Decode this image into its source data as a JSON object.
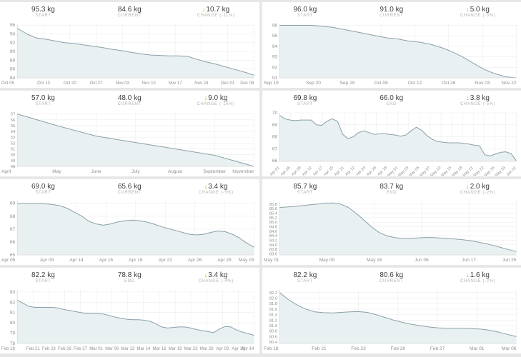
{
  "page": {
    "background": "#e7e7e7",
    "card_background": "#ffffff",
    "unit": "kg"
  },
  "colors": {
    "line": "#8aa0a8",
    "fill": "#e9f0f2",
    "grid": "#ececec",
    "baseline": "#d9d9d9",
    "axis_text": "#8f8f8f",
    "value_text": "#3f3f3f",
    "label_text": "#b3b3b3",
    "arrow": "#c7a21b"
  },
  "icons": {
    "down_arrow": "↓"
  },
  "chart_data": [
    {
      "type": "area",
      "stats": [
        {
          "value": "95.3 kg",
          "label": "START",
          "arrow": false
        },
        {
          "value": "84.6 kg",
          "label": "CURRENT",
          "arrow": false
        },
        {
          "value": "10.7 kg",
          "label": "CHANGE (-11%)",
          "arrow": true
        }
      ],
      "x_ticks": [
        "Oct 05",
        "Oct 13",
        "Oct 20",
        "Oct 27",
        "Nov 03",
        "Nov 10",
        "Nov 17",
        "Nov 24",
        "Dec 01",
        "Dec 08"
      ],
      "y_ticks": [
        "84",
        "86",
        "88",
        "90",
        "92",
        "94",
        "96"
      ],
      "ylim": [
        84,
        96.2
      ],
      "x_label_rotate": false,
      "values": [
        95.3,
        94.0,
        93.1,
        92.8,
        92.4,
        92.0,
        91.8,
        91.5,
        91.2,
        90.9,
        90.5,
        90.2,
        89.8,
        89.5,
        89.2,
        89.1,
        89.0,
        89.0,
        88.9,
        88.2,
        87.6,
        87.1,
        86.5,
        85.9,
        85.3,
        84.6
      ]
    },
    {
      "type": "area",
      "stats": [
        {
          "value": "96.0 kg",
          "label": "START",
          "arrow": false
        },
        {
          "value": "91.0 kg",
          "label": "CURRENT",
          "arrow": false
        },
        {
          "value": "5.0 kg",
          "label": "CHANGE (-5%)",
          "arrow": true
        }
      ],
      "x_ticks": [
        "Sep 19",
        "Sep 20",
        "Sep 29",
        "Oct 06",
        "Oct 12",
        "Oct 26",
        "Nov 03",
        "Nov 22"
      ],
      "y_ticks": [
        "91",
        "92",
        "93",
        "94",
        "95",
        "96"
      ],
      "ylim": [
        91,
        96.1
      ],
      "x_label_rotate": false,
      "values": [
        96.0,
        96.0,
        96.0,
        96.0,
        95.9,
        95.8,
        95.6,
        95.4,
        95.2,
        95.0,
        94.8,
        94.7,
        94.5,
        94.4,
        94.2,
        93.9,
        93.5,
        93.0,
        92.4,
        91.8,
        91.4,
        91.1,
        91.0
      ]
    },
    {
      "type": "area",
      "stats": [
        {
          "value": "57.0 kg",
          "label": "START",
          "arrow": false
        },
        {
          "value": "48.0 kg",
          "label": "CURRENT",
          "arrow": false
        },
        {
          "value": "9.0 kg",
          "label": "CHANGE (-16%)",
          "arrow": true
        }
      ],
      "x_ticks": [
        "April",
        "May",
        "June",
        "July",
        "August",
        "September",
        "November"
      ],
      "y_ticks": [
        "48",
        "49",
        "50",
        "51",
        "52",
        "53",
        "54",
        "55",
        "56",
        "57"
      ],
      "ylim": [
        48,
        57.2
      ],
      "x_label_rotate": false,
      "values": [
        57.0,
        55.0,
        53.2,
        52.1,
        51.0,
        49.9,
        48.0
      ]
    },
    {
      "type": "area",
      "stats": [
        {
          "value": "69.8 kg",
          "label": "START",
          "arrow": false
        },
        {
          "value": "66.0 kg",
          "label": "END",
          "arrow": false
        },
        {
          "value": "3.8 kg",
          "label": "CHANGE (-5%)",
          "arrow": true
        }
      ],
      "x_ticks": [
        "Apr 01",
        "Apr 06",
        "Apr 09",
        "Apr 12",
        "Apr 17",
        "Apr 19",
        "Apr 21",
        "Apr 22",
        "Apr 24",
        "Apr 26",
        "Apr 28",
        "May 01",
        "May 03",
        "May 05",
        "May 07",
        "May 10",
        "May 15",
        "May 18",
        "May 21",
        "May 22",
        "May 26",
        "May 29",
        "Jun 01"
      ],
      "y_ticks": [
        "66",
        "67",
        "68",
        "69",
        "70"
      ],
      "ylim": [
        65.95,
        70
      ],
      "x_label_rotate": true,
      "values": [
        69.8,
        69.5,
        69.4,
        69.35,
        69.4,
        69.4,
        69.4,
        69.0,
        68.95,
        69.3,
        69.5,
        69.3,
        68.2,
        67.85,
        68.0,
        68.35,
        68.5,
        68.35,
        68.2,
        68.25,
        68.25,
        68.2,
        68.15,
        68.05,
        68.15,
        68.5,
        68.8,
        68.55,
        68.1,
        67.8,
        67.6,
        67.55,
        67.5,
        67.5,
        67.5,
        67.45,
        67.4,
        67.3,
        67.25,
        66.5,
        66.4,
        66.55,
        66.7,
        66.75,
        66.6,
        66.0
      ]
    },
    {
      "type": "area",
      "stats": [
        {
          "value": "69.0 kg",
          "label": "START",
          "arrow": false
        },
        {
          "value": "65.6 kg",
          "label": "CURRENT",
          "arrow": false
        },
        {
          "value": "3.4 kg",
          "label": "CHANGE (-5%)",
          "arrow": true
        }
      ],
      "x_ticks": [
        "Apr 05",
        "Apr 09",
        "Apr 14",
        "Apr 16",
        "Apr 18",
        "Apr 22",
        "Apr 26",
        "Apr 29",
        "May 03"
      ],
      "y_ticks": [
        "65",
        "66",
        "67",
        "68",
        "69"
      ],
      "ylim": [
        65,
        69.15
      ],
      "x_label_rotate": false,
      "values": [
        69.0,
        69.0,
        69.0,
        69.0,
        68.95,
        68.9,
        68.8,
        68.6,
        68.3,
        68.0,
        67.6,
        67.4,
        67.3,
        67.4,
        67.55,
        67.65,
        67.7,
        67.65,
        67.55,
        67.4,
        67.2,
        67.05,
        66.9,
        66.75,
        66.6,
        66.55,
        66.6,
        66.75,
        66.85,
        66.8,
        66.6,
        66.3,
        65.9,
        65.6
      ]
    },
    {
      "type": "area",
      "stats": [
        {
          "value": "85.7 kg",
          "label": "START",
          "arrow": false
        },
        {
          "value": "83.7 kg",
          "label": "END",
          "arrow": false
        },
        {
          "value": "2.0 kg",
          "label": "CHANGE (-2%)",
          "arrow": true
        }
      ],
      "x_ticks": [
        "May 01",
        "May 09",
        "May 16",
        "Jun 06",
        "Jun 17",
        "Jun 25"
      ],
      "y_ticks": [
        "83.6",
        "83.8",
        "84.0",
        "84.2",
        "84.4",
        "84.6",
        "84.8",
        "85.0",
        "85.2",
        "85.4",
        "85.6",
        "85.8"
      ],
      "ylim": [
        83.55,
        85.92
      ],
      "x_label_rotate": false,
      "values": [
        85.65,
        85.67,
        85.7,
        85.73,
        85.77,
        85.8,
        85.84,
        85.85,
        85.8,
        85.65,
        85.4,
        85.1,
        84.8,
        84.55,
        84.4,
        84.32,
        84.28,
        84.28,
        84.3,
        84.32,
        84.32,
        84.3,
        84.28,
        84.25,
        84.22,
        84.18,
        84.12,
        84.05,
        83.97,
        83.88,
        83.78,
        83.7
      ]
    },
    {
      "type": "area",
      "stats": [
        {
          "value": "82.2 kg",
          "label": "START",
          "arrow": false
        },
        {
          "value": "78.8 kg",
          "label": "END",
          "arrow": false
        },
        {
          "value": "3.4 kg",
          "label": "CHANGE (-4%)",
          "arrow": true
        }
      ],
      "x_ticks": [
        "Feb 18",
        "Feb 21",
        "Feb 23",
        "Feb 26",
        "Feb 27",
        "Mar 01",
        "Mar 06",
        "Mar 13",
        "Mar 14",
        "Mar 16",
        "Mar 19",
        "Mar 23",
        "Mar 26",
        "Apr 03",
        "Apr 10",
        "Apr 14"
      ],
      "y_ticks": [
        "78",
        "79",
        "80",
        "81",
        "82",
        "83"
      ],
      "ylim": [
        78,
        83.2
      ],
      "x_label_rotate": false,
      "values": [
        82.2,
        81.9,
        81.6,
        81.5,
        81.5,
        81.5,
        81.5,
        81.45,
        81.3,
        81.2,
        81.1,
        81.0,
        80.9,
        80.9,
        80.9,
        80.85,
        80.7,
        80.55,
        80.45,
        80.35,
        80.3,
        80.3,
        80.25,
        80.15,
        79.9,
        79.6,
        79.5,
        79.55,
        79.6,
        79.6,
        79.5,
        79.35,
        79.25,
        79.15,
        79.05,
        79.4,
        79.65,
        79.6,
        79.3,
        79.1,
        78.95,
        78.8
      ]
    },
    {
      "type": "area",
      "stats": [
        {
          "value": "82.2 kg",
          "label": "START",
          "arrow": false
        },
        {
          "value": "80.6 kg",
          "label": "CURRENT",
          "arrow": false
        },
        {
          "value": "1.6 kg",
          "label": "CHANGE (-2%)",
          "arrow": true
        }
      ],
      "x_ticks": [
        "Feb 18",
        "Feb 21",
        "Feb 23",
        "Feb 26",
        "Feb 27",
        "Mar 01",
        "Mar 06"
      ],
      "y_ticks": [
        "80.4",
        "80.6",
        "80.8",
        "81.0",
        "81.2",
        "81.4",
        "81.6",
        "81.8",
        "82.0",
        "82.2"
      ],
      "ylim": [
        80.35,
        82.3
      ],
      "x_label_rotate": false,
      "values": [
        82.2,
        81.95,
        81.75,
        81.6,
        81.5,
        81.47,
        81.46,
        81.48,
        81.5,
        81.51,
        81.48,
        81.4,
        81.3,
        81.2,
        81.12,
        81.05,
        81.0,
        80.95,
        80.92,
        80.9,
        80.9,
        80.9,
        80.89,
        80.87,
        80.83,
        80.76,
        80.68,
        80.6
      ]
    }
  ]
}
